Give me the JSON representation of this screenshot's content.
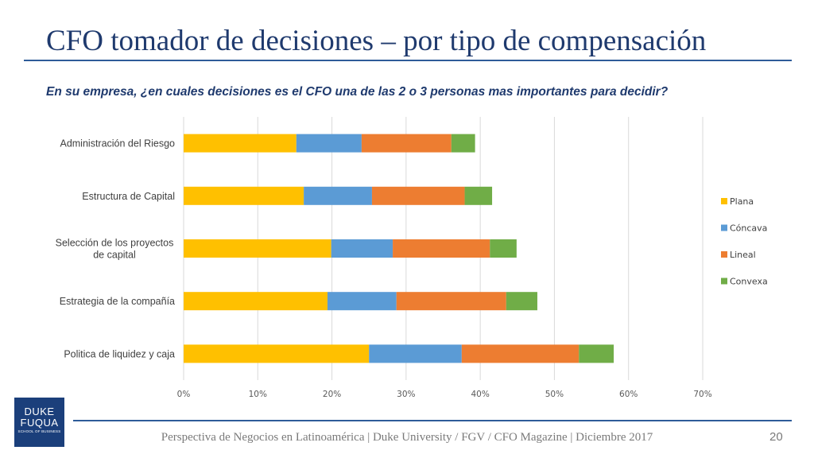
{
  "slide": {
    "title": "CFO tomador de decisiones – por tipo de compensación",
    "subtitle": "En su empresa, ¿en cuales decisiones es el CFO una de las 2 o 3 personas mas importantes para decidir?",
    "footer": "Perspectiva de Negocios en Latinoamérica | Duke University / FGV / CFO Magazine | Diciembre 2017",
    "page_number": "20"
  },
  "logo": {
    "line1": "DUKE",
    "line2": "FUQUA",
    "line3": "SCHOOL OF BUSINESS",
    "bg_color": "#1b3f7b"
  },
  "chart_data": {
    "type": "bar",
    "orientation": "horizontal",
    "stacked": true,
    "title": "",
    "xlabel": "",
    "ylabel": "",
    "categories": [
      [
        "Administración del Riesgo"
      ],
      [
        "Estructura de Capital"
      ],
      [
        "Selección de los proyectos",
        "de capital"
      ],
      [
        "Estrategia de la compañía"
      ],
      [
        "Politica de liquidez y caja"
      ]
    ],
    "series": [
      {
        "name": "Plana",
        "color": "#ffc000",
        "values": [
          15.2,
          16.2,
          19.9,
          19.4,
          25.0
        ]
      },
      {
        "name": "Cóncava",
        "color": "#5b9bd5",
        "values": [
          8.8,
          9.2,
          8.3,
          9.3,
          12.5
        ]
      },
      {
        "name": "Lineal",
        "color": "#ed7d31",
        "values": [
          12.1,
          12.5,
          13.1,
          14.8,
          15.8
        ]
      },
      {
        "name": "Convexa",
        "color": "#70ad47",
        "values": [
          3.2,
          3.7,
          3.6,
          4.2,
          4.7
        ]
      }
    ],
    "xlim": [
      0,
      70
    ],
    "xticks": [
      0,
      10,
      20,
      30,
      40,
      50,
      60,
      70
    ],
    "tick_format": "%",
    "grid": true,
    "legend_position": "right"
  }
}
